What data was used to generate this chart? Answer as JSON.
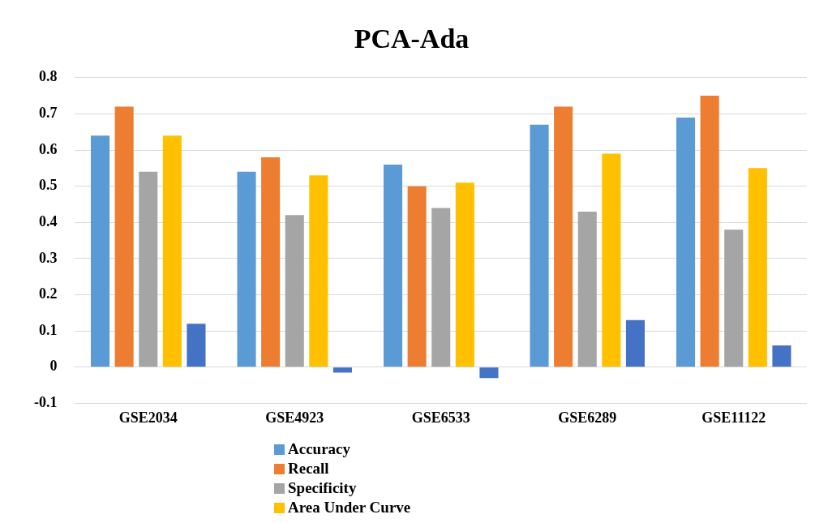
{
  "chart_data": {
    "type": "bar",
    "title": "PCA-Ada",
    "categories": [
      "GSE2034",
      "GSE4923",
      "GSE6533",
      "GSE6289",
      "GSE11122"
    ],
    "series": [
      {
        "name": "Accuracy",
        "color": "#5b9bd5",
        "values": [
          0.64,
          0.54,
          0.56,
          0.67,
          0.69
        ]
      },
      {
        "name": "Recall",
        "color": "#ed7d31",
        "values": [
          0.72,
          0.58,
          0.5,
          0.72,
          0.75
        ]
      },
      {
        "name": "Specificity",
        "color": "#a5a5a5",
        "values": [
          0.54,
          0.42,
          0.44,
          0.43,
          0.38
        ]
      },
      {
        "name": "Area Under Curve",
        "color": "#ffc000",
        "values": [
          0.64,
          0.53,
          0.51,
          0.59,
          0.55
        ]
      },
      {
        "color": "#4472c4",
        "values": [
          0.12,
          -0.015,
          -0.03,
          0.13,
          0.06
        ]
      }
    ],
    "ylim": [
      -0.1,
      0.8
    ],
    "yticks": [
      -0.1,
      0,
      0.1,
      0.2,
      0.3,
      0.4,
      0.5,
      0.6,
      0.7,
      0.8
    ],
    "grid": "y",
    "legend": "bottom"
  }
}
